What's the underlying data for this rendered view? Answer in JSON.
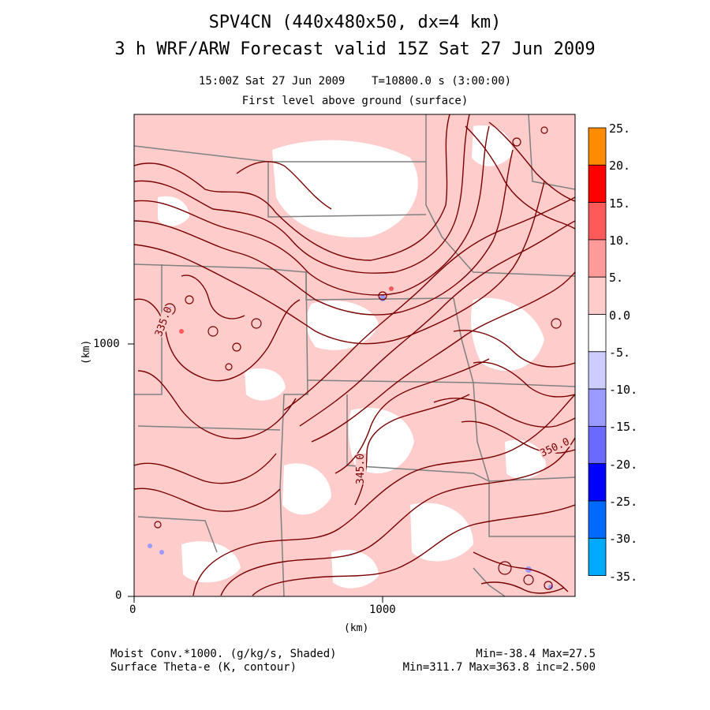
{
  "header": {
    "title_line1": "SPV4CN (440x480x50, dx=4 km)",
    "title_line2": "3 h WRF/ARW Forecast valid 15Z Sat 27 Jun 2009",
    "subtitle_line1": "15:00Z Sat 27 Jun 2009    T=10800.0 s (3:00:00)",
    "subtitle_line2": "First level above ground (surface)"
  },
  "axes": {
    "x_label": "(km)",
    "y_label": "(km)",
    "x_ticks": [
      "0",
      "1000"
    ],
    "y_ticks": [
      "0",
      "1000"
    ]
  },
  "colorbar": {
    "levels": [
      "25.",
      "20.",
      "15.",
      "10.",
      "5.",
      "0.0",
      "-5.",
      "-10.",
      "-15.",
      "-20.",
      "-25.",
      "-30.",
      "-35."
    ],
    "colors": [
      "#ff8c00",
      "#ff0000",
      "#ff5a5a",
      "#ff9a9a",
      "#ffcccc",
      "#ffffff",
      "#ccccff",
      "#9a9aff",
      "#6a6aff",
      "#0000ff",
      "#006aff",
      "#00aaff",
      "#00ffff"
    ]
  },
  "contour_labels": [
    "335.0",
    "345.0",
    "350.0"
  ],
  "footer": {
    "left_line1": "Moist Conv.*1000. (g/kg/s, Shaded)",
    "left_line2": "Surface Theta-e (K, contour)",
    "right_line1": "Min=-38.4 Max=27.5",
    "right_line2": "Min=311.7 Max=363.8 inc=2.500"
  },
  "colors": {
    "contour": "#7a0000",
    "shading": "#ffcccc",
    "boundary": "#808080"
  }
}
